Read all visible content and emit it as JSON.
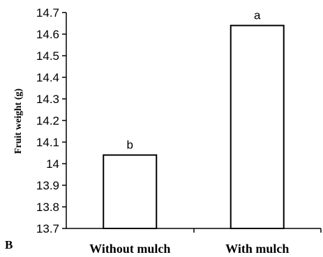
{
  "panel_label": "B",
  "chart_data": {
    "type": "bar",
    "categories": [
      "Without mulch",
      "With mulch"
    ],
    "values": [
      14.04,
      14.64
    ],
    "data_labels": [
      "b",
      "a"
    ],
    "ylabel": "Fruit weight (g)",
    "xlabel": "",
    "ylim": [
      13.7,
      14.7
    ],
    "yticks": [
      "13.7",
      "13.8",
      "13.9",
      "14",
      "14.1",
      "14.2",
      "14.3",
      "14.4",
      "14.5",
      "14.6",
      "14.7"
    ],
    "grid": false,
    "bar_fill": "#ffffff",
    "bar_stroke": "#000000"
  }
}
